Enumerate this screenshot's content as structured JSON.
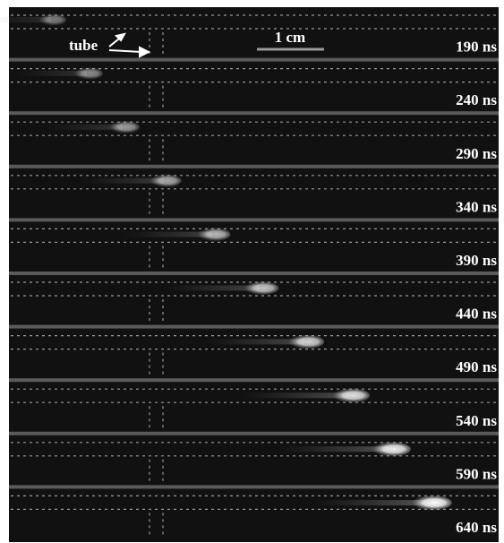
{
  "figure": {
    "tube_label": "tube",
    "scale_label": "1 cm",
    "frames": [
      {
        "time": "190 ns"
      },
      {
        "time": "240 ns"
      },
      {
        "time": "290 ns"
      },
      {
        "time": "340 ns"
      },
      {
        "time": "390 ns"
      },
      {
        "time": "440 ns"
      },
      {
        "time": "490 ns"
      },
      {
        "time": "540 ns"
      },
      {
        "time": "590 ns"
      },
      {
        "time": "640 ns"
      }
    ]
  }
}
